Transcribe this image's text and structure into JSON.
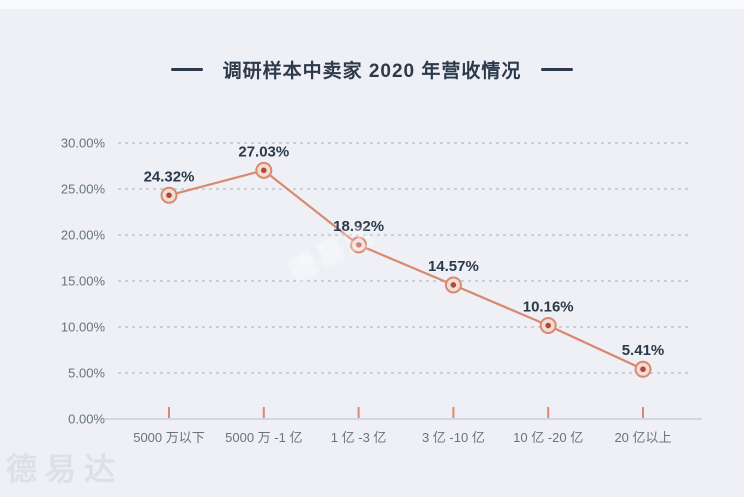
{
  "page": {
    "background": "#eef0f5",
    "bottom_left_watermark": "德易达",
    "center_watermark": "德易达"
  },
  "chart_data": {
    "type": "line",
    "title": "调研样本中卖家 2020 年营收情况",
    "categories": [
      "5000 万以下",
      "5000 万 -1 亿",
      "1 亿 -3 亿",
      "3 亿 -10 亿",
      "10 亿 -20 亿",
      "20 亿以上"
    ],
    "values": [
      24.32,
      27.03,
      18.92,
      14.57,
      10.16,
      5.41
    ],
    "data_labels": [
      "24.32%",
      "27.03%",
      "18.92%",
      "14.57%",
      "10.16%",
      "5.41%"
    ],
    "y_tick_labels": [
      "30.00%",
      "25.00%",
      "20.00%",
      "15.00%",
      "10.00%",
      "5.00%",
      "0.00%"
    ],
    "y_tick_values": [
      30,
      25,
      20,
      15,
      10,
      5,
      0
    ],
    "ylim": [
      0,
      30
    ],
    "xlabel": "",
    "ylabel": "",
    "grid": "horizontal-dashed",
    "legend": "none",
    "colors": {
      "line": "#d8896f",
      "marker_ring": "#d8896f",
      "marker_fill": "#f3ddd3",
      "marker_dot": "#ad4a3c",
      "data_label": "#2c3948",
      "axis_text": "#68737f",
      "gridline": "#b6bcc6",
      "axis_line": "#c9ced6",
      "x_tick": "#e0886c",
      "title": "#2d3a4c"
    }
  }
}
